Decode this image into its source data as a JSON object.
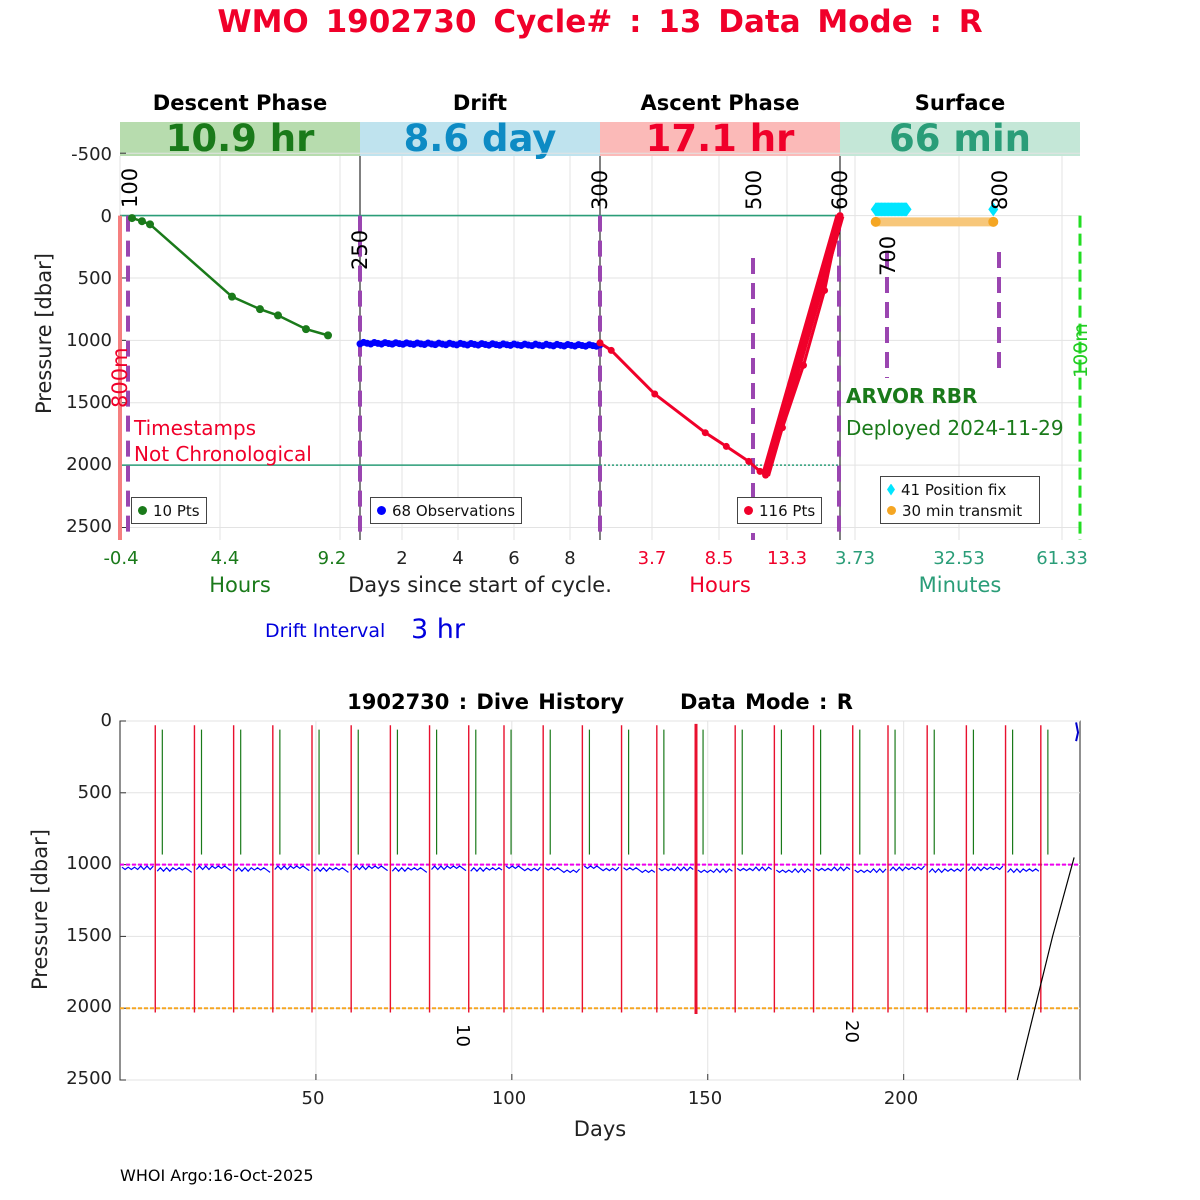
{
  "title": "WMO 1902730   Cycle# : 13   Data Mode : R",
  "top_panel": {
    "phases": [
      {
        "name": "Descent Phase",
        "duration": "10.9 hr",
        "bg": "#b7dcae",
        "fg": "#1a7a1a"
      },
      {
        "name": "Drift",
        "duration": "8.6 day",
        "bg": "#bfe3ee",
        "fg": "#0d8bc4"
      },
      {
        "name": "Ascent Phase",
        "duration": "17.1 hr",
        "bg": "#fbbab8",
        "fg": "#f0002a"
      },
      {
        "name": "Surface",
        "duration": "66 min",
        "bg": "#c4e7d7",
        "fg": "#2a9d78"
      }
    ],
    "ylabel": "Pressure [dbar]",
    "yticks": [
      "-500",
      "0",
      "500",
      "1000",
      "1500",
      "2000",
      "2500"
    ],
    "ylim": [
      -750,
      2600
    ],
    "markers": [
      "100",
      "250",
      "300",
      "500",
      "600",
      "700",
      "800"
    ],
    "depth_labels": {
      "left": "800m",
      "right": "100m"
    },
    "annotations": {
      "timestamps_line1": "Timestamps",
      "timestamps_line2": "Not Chronological",
      "float_model": "ARVOR RBR",
      "deployed": "Deployed 2024-11-29"
    },
    "xticks": {
      "descent": [
        "-0.4",
        "4.4",
        "9.2"
      ],
      "drift": [
        "2",
        "4",
        "6",
        "8"
      ],
      "ascent": [
        "3.7",
        "8.5",
        "13.3"
      ],
      "surface": [
        "3.73",
        "32.53",
        "61.33"
      ]
    },
    "xunits": {
      "descent": "Hours",
      "drift": "Days since start of cycle.",
      "ascent": "Hours",
      "surface": "Minutes"
    },
    "legends": {
      "descent": "10 Pts",
      "drift": "68 Observations",
      "ascent": "116 Pts",
      "surface_fix": "41 Position fix",
      "surface_transmit": "30 min transmit"
    },
    "drift_interval_label": "Drift Interval",
    "drift_interval_value": "3 hr"
  },
  "chart_data": [
    {
      "type": "line",
      "panel": "descent",
      "x_unit": "hours",
      "xlim": [
        -0.4,
        11.6
      ],
      "x": [
        0.2,
        0.7,
        1.1,
        5.2,
        6.6,
        7.5,
        8.9,
        10.0
      ],
      "y": [
        20,
        45,
        70,
        650,
        750,
        800,
        910,
        960
      ],
      "color": "#1a7a1a"
    },
    {
      "type": "line",
      "panel": "drift",
      "x_unit": "days",
      "xlim": [
        0.2,
        8.8
      ],
      "x_start": 0.2,
      "x_end": 8.8,
      "y_start": 1020,
      "y_end": 1040,
      "n_points": 68,
      "color": "#0000ff"
    },
    {
      "type": "line",
      "panel": "ascent",
      "x_unit": "hours",
      "xlim": [
        0.5,
        17.6
      ],
      "x": [
        0.5,
        1.3,
        4.4,
        8.0,
        9.5,
        11.1,
        11.9,
        12.3,
        13.5,
        15.0,
        16.5,
        17.6
      ],
      "y": [
        1020,
        1080,
        1430,
        1740,
        1850,
        1970,
        2050,
        2080,
        1700,
        1200,
        600,
        0
      ],
      "color": "#f0002a"
    },
    {
      "type": "scatter",
      "panel": "surface",
      "x_unit": "minutes",
      "xlim": [
        3.73,
        66
      ],
      "series": [
        {
          "name": "41 Position fix",
          "x_range": [
            13,
            21
          ],
          "y": -50,
          "color": "#00e5ff"
        },
        {
          "name": "30 min transmit",
          "x_range": [
            13,
            43.5
          ],
          "y": 50,
          "color": "#f7c77a"
        }
      ]
    },
    {
      "type": "line",
      "panel": "dive_history",
      "title": "1902730 : Dive History      Data Mode : R",
      "xlabel": "Days",
      "ylabel": "Pressure [dbar]",
      "xlim": [
        0,
        245
      ],
      "ylim": [
        0,
        2500
      ],
      "xticks": [
        "50",
        "100",
        "150",
        "200"
      ],
      "yticks": [
        "0",
        "500",
        "1000",
        "1500",
        "2000",
        "2500"
      ],
      "reference_lines": {
        "park_dbar": 1000,
        "profile_dbar": 2000,
        "park_color": "#ee00ee",
        "profile_color": "#f5a623"
      },
      "cycle_days": [
        9,
        19,
        29,
        39,
        49,
        59,
        69,
        79,
        89,
        98,
        108,
        118,
        128,
        137,
        147,
        157,
        167,
        177,
        187,
        196,
        206,
        216,
        226,
        235
      ],
      "cycle_labels": [
        {
          "day": 88,
          "text": "10"
        },
        {
          "day": 187,
          "text": "20"
        }
      ]
    }
  ],
  "footer": "WHOI Argo:16-Oct-2025"
}
